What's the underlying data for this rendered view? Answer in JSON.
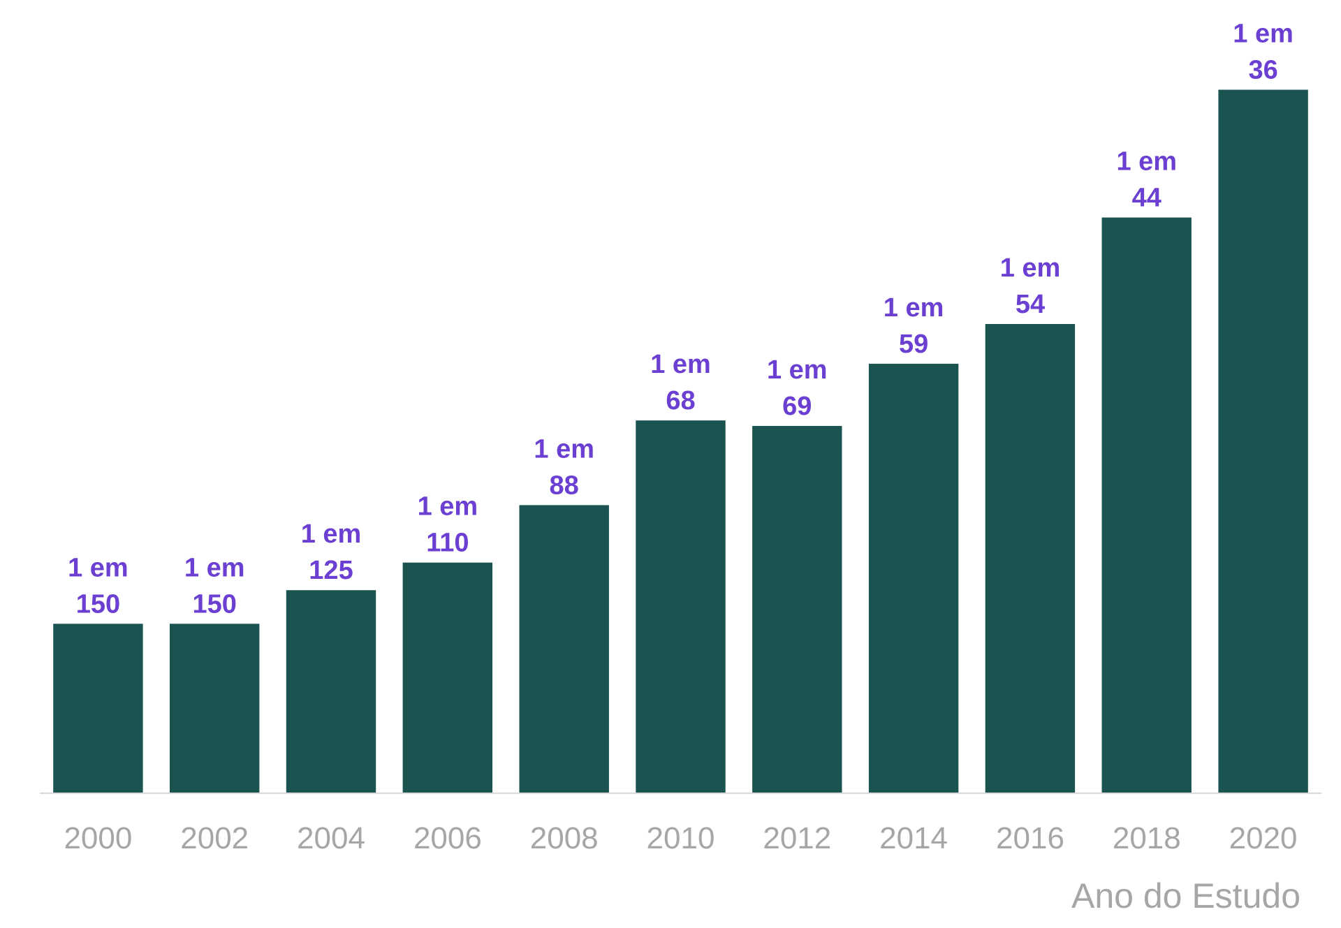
{
  "chart_data": {
    "type": "bar",
    "categories": [
      "2000",
      "2002",
      "2004",
      "2006",
      "2008",
      "2010",
      "2012",
      "2014",
      "2016",
      "2018",
      "2020"
    ],
    "values": [
      0.00667,
      0.00667,
      0.008,
      0.00909,
      0.01136,
      0.01471,
      0.01449,
      0.01695,
      0.01852,
      0.02273,
      0.02778
    ],
    "data_labels": [
      [
        "1 em",
        "150"
      ],
      [
        "1 em",
        "150"
      ],
      [
        "1 em",
        "125"
      ],
      [
        "1 em",
        "110"
      ],
      [
        "1 em",
        "88"
      ],
      [
        "1 em",
        "68"
      ],
      [
        "1 em",
        "69"
      ],
      [
        "1 em",
        "59"
      ],
      [
        "1 em",
        "54"
      ],
      [
        "1 em",
        "44"
      ],
      [
        "1 em",
        "36"
      ]
    ],
    "xlabel": "Ano do Estudo",
    "ylim": [
      0,
      0.0305
    ],
    "grid": false,
    "legend": "none",
    "colors": {
      "bar": "#1b5350",
      "data_label": "#6a3fd2",
      "tick_label": "#a6a6a6",
      "axis_title": "#a6a6a6",
      "axis_line": "#d9d9d9"
    }
  }
}
